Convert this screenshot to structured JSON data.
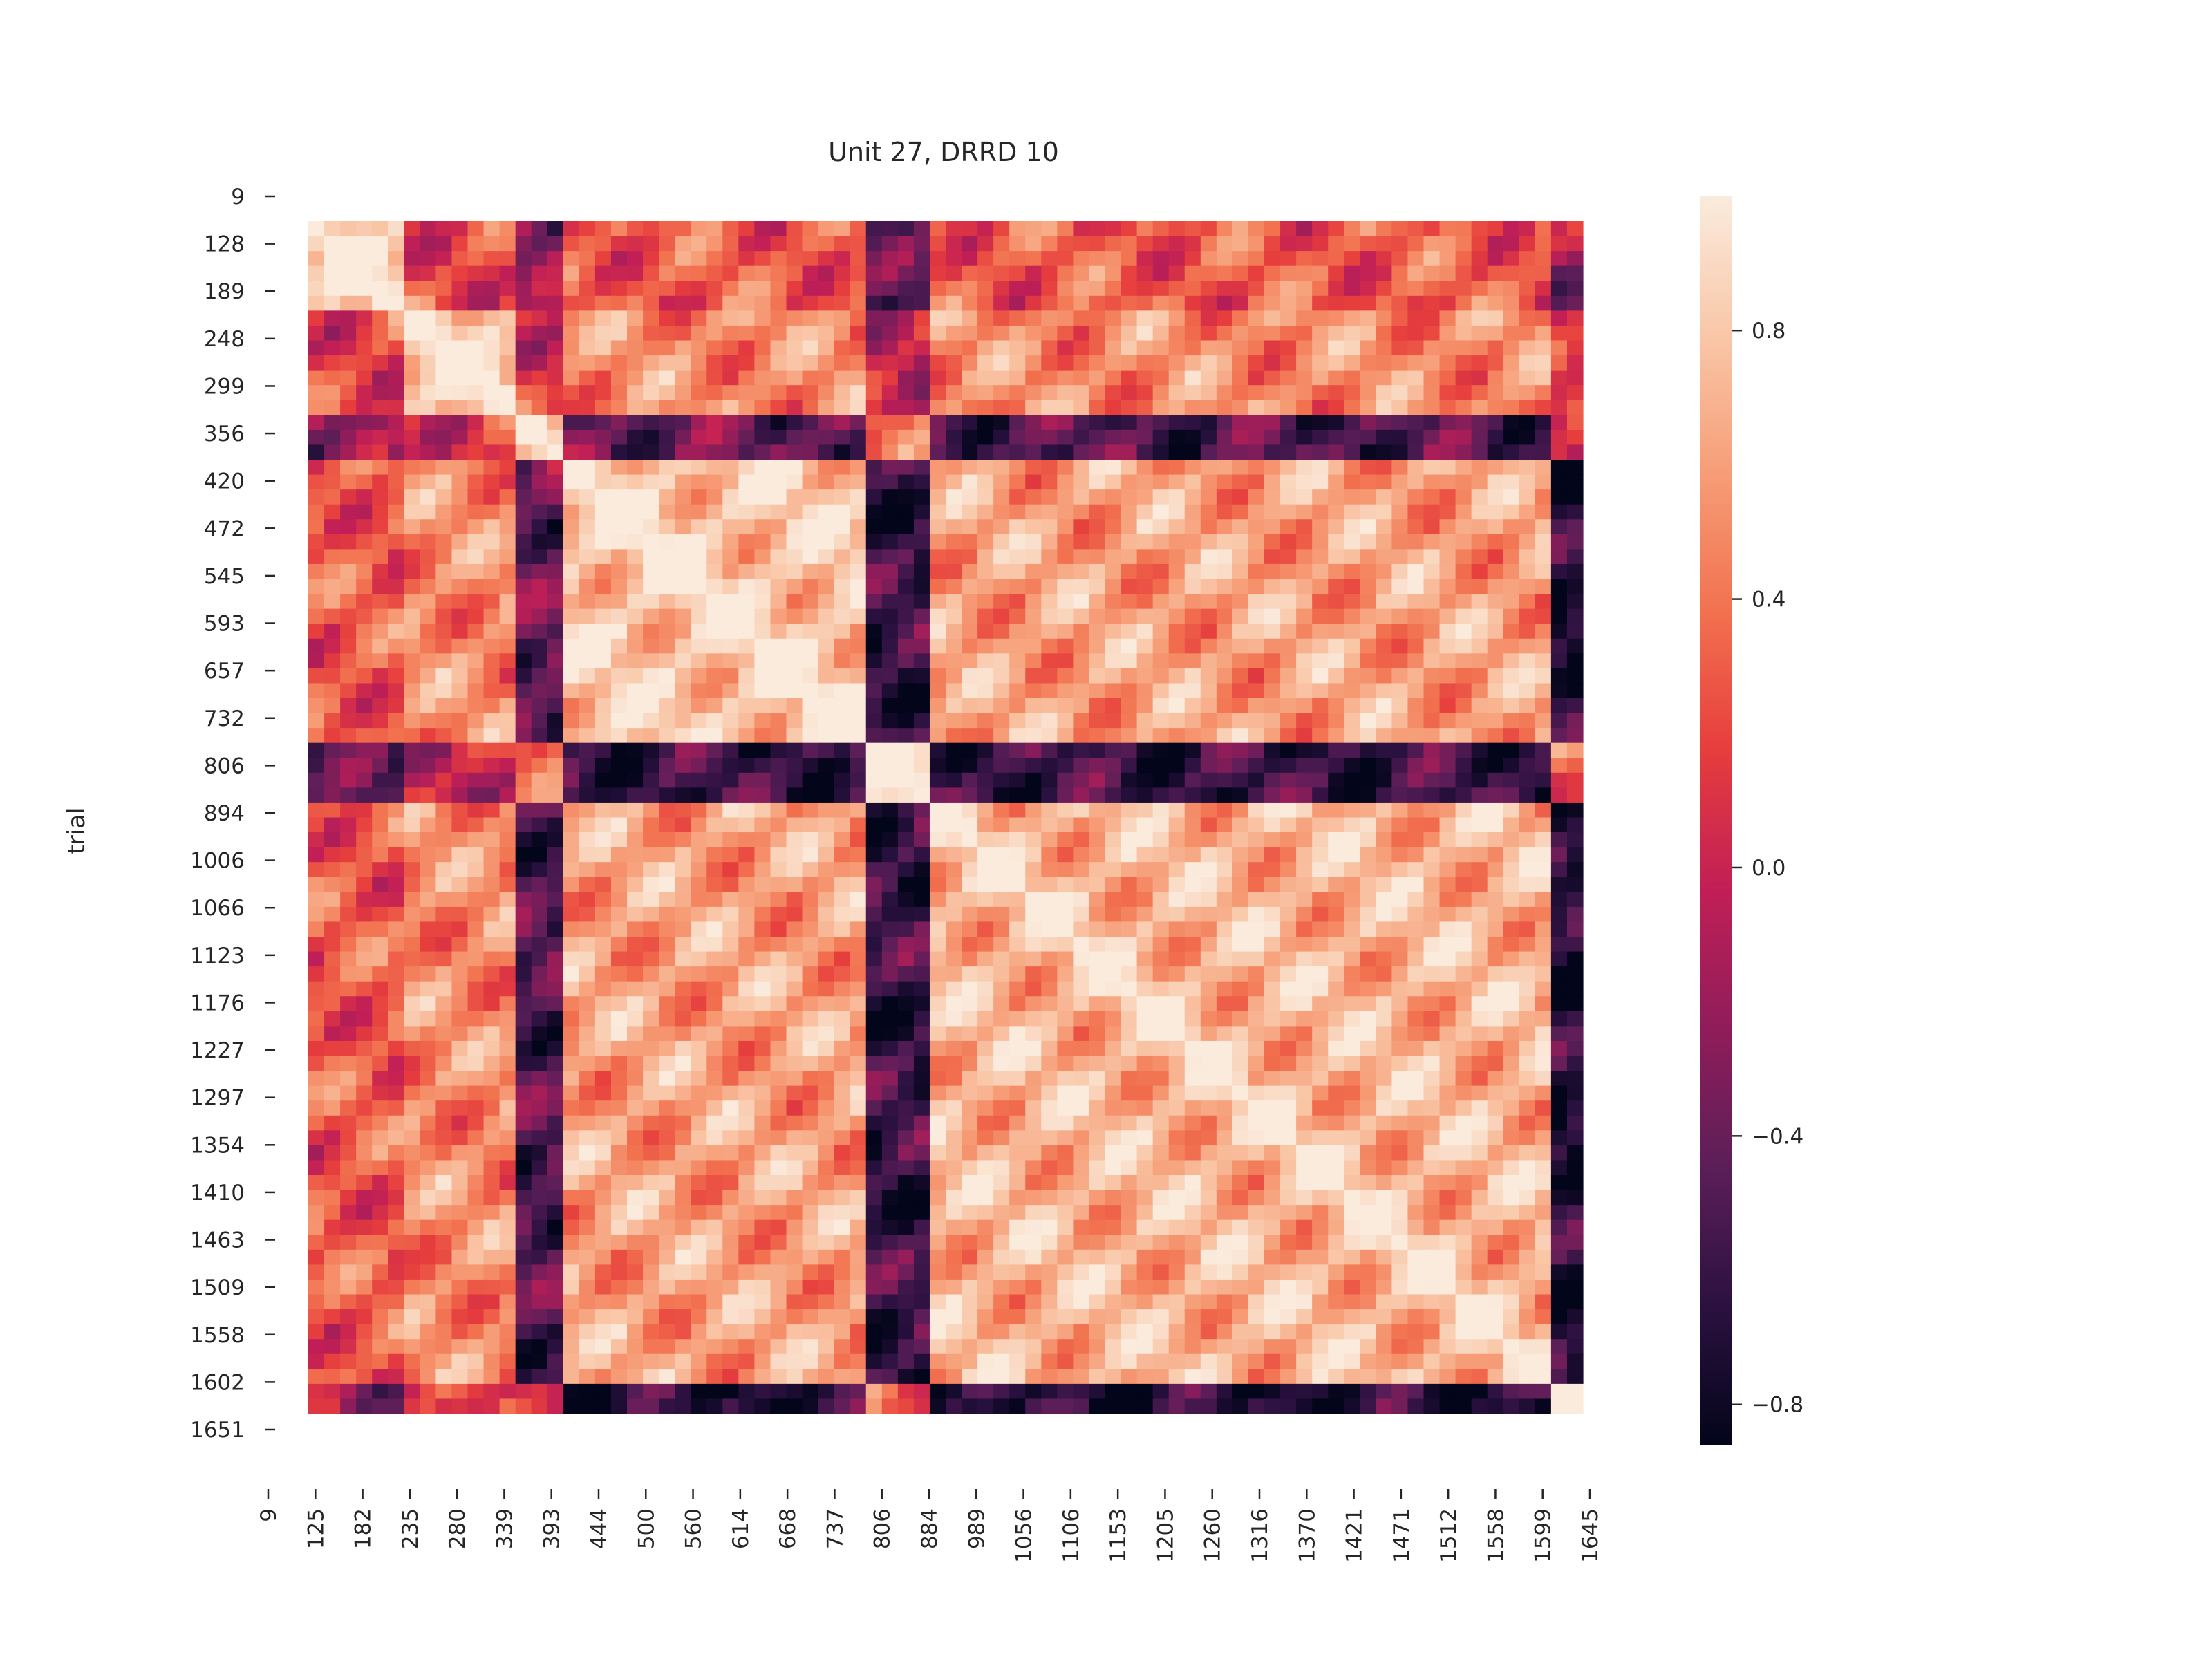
{
  "chart_data": {
    "type": "heatmap",
    "title": "Unit 27, DRRD 10",
    "xlabel": "",
    "ylabel": "trial",
    "x_tick_labels": [
      "9",
      "125",
      "182",
      "235",
      "280",
      "339",
      "393",
      "444",
      "500",
      "560",
      "614",
      "668",
      "737",
      "806",
      "884",
      "989",
      "1056",
      "1106",
      "1153",
      "1205",
      "1260",
      "1316",
      "1370",
      "1421",
      "1471",
      "1512",
      "1558",
      "1599",
      "1645"
    ],
    "y_tick_labels": [
      "9",
      "128",
      "189",
      "248",
      "299",
      "356",
      "420",
      "472",
      "545",
      "593",
      "657",
      "732",
      "806",
      "894",
      "1006",
      "1066",
      "1123",
      "1176",
      "1227",
      "1297",
      "1354",
      "1410",
      "1463",
      "1509",
      "1558",
      "1602",
      "1651"
    ],
    "colorbar": {
      "ticks": [
        "0.8",
        "0.4",
        "0.0",
        "−0.4",
        "−0.8"
      ],
      "tick_values": [
        0.8,
        0.4,
        0.0,
        -0.4,
        -0.8
      ],
      "vmin": -0.86,
      "vmax": 1.0,
      "colormap": "rocket",
      "stops": [
        "#03051a",
        "#2b1140",
        "#5c1e58",
        "#8f1d5a",
        "#c11f56",
        "#e63d3d",
        "#f2714f",
        "#f69d77",
        "#f9c7a8",
        "#faebdd"
      ]
    },
    "block_boundaries_x": [
      125,
      280,
      339,
      737,
      806,
      1645
    ],
    "block_boundaries_y": [
      128,
      299,
      732,
      806,
      1602,
      1651
    ],
    "note_values": "Matrix of trial-by-trial correlations; diagonal = 1.0. Block structure: trials ~339-737 and ~806-1602 strongly correlated (~0.6-0.9); boundary trials (~280-339, ~737-806, ~1599+) anticorrelated (~-0.6 to -0.8)."
  }
}
